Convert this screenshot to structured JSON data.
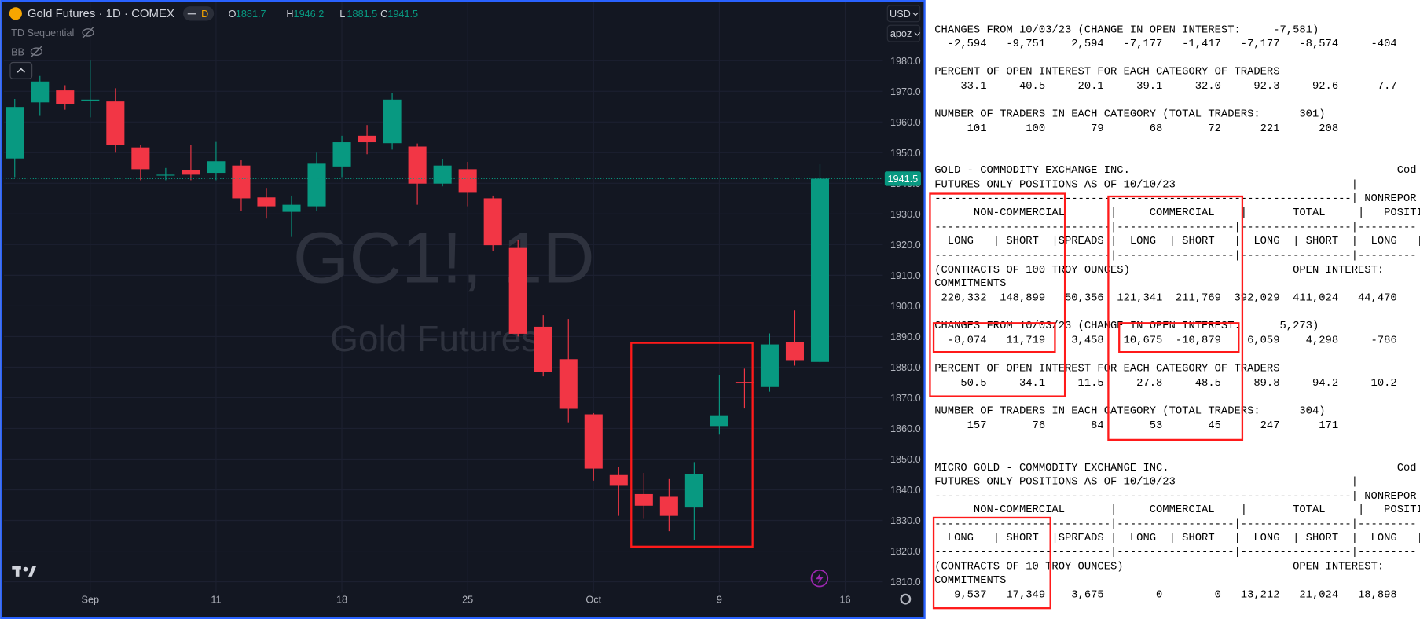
{
  "app": {
    "symbol_title": "Gold Futures · 1D · COMEX",
    "interval_badge": "D",
    "ohlc_letters": [
      "O",
      "H",
      "L",
      "C"
    ],
    "indicators": [
      "TD Sequential",
      "BB"
    ],
    "watermark": {
      "symbol": "GC1!, 1D",
      "description": "Gold Futures"
    },
    "currency": "USD",
    "scale_menu": "apoz"
  },
  "chart_data": {
    "type": "candlestick",
    "series": {
      "open": [
        1948.1,
        1966.4,
        1970.3,
        1967.0,
        1966.7,
        1951.7,
        1942.5,
        1944.3,
        1943.4,
        1945.8,
        1935.4,
        1930.7,
        1932.5,
        1945.5,
        1955.5,
        1953.1,
        1952.0,
        1939.9,
        1944.6,
        1935.1,
        1918.9,
        1893.2,
        1882.6,
        1864.6,
        1844.8,
        1838.6,
        1837.7,
        1834.2,
        1860.8,
        1875.2,
        1873.5,
        1888.2,
        1881.7
      ],
      "high": [
        1967.5,
        1975.0,
        1972.0,
        1980.0,
        1971.0,
        1952.5,
        1945.0,
        1952.5,
        1953.5,
        1947.5,
        1938.5,
        1936.0,
        1950.0,
        1955.5,
        1959.0,
        1969.5,
        1953.0,
        1948.0,
        1947.0,
        1936.0,
        1921.5,
        1897.0,
        1895.7,
        1865.0,
        1847.5,
        1845.5,
        1843.5,
        1849.0,
        1877.5,
        1879.5,
        1891.0,
        1898.5,
        1946.2
      ],
      "low": [
        1942.0,
        1962.0,
        1964.0,
        1961.5,
        1950.0,
        1941.0,
        1941.0,
        1941.0,
        1941.0,
        1931.0,
        1928.5,
        1922.5,
        1931.0,
        1942.0,
        1949.5,
        1951.0,
        1933.0,
        1939.0,
        1932.5,
        1918.0,
        1890.0,
        1877.0,
        1862.0,
        1843.0,
        1831.5,
        1830.5,
        1826.5,
        1823.5,
        1858.0,
        1866.5,
        1872.0,
        1880.5,
        1881.5
      ],
      "close": [
        1964.9,
        1973.2,
        1965.8,
        1967.3,
        1952.5,
        1944.6,
        1942.8,
        1942.8,
        1947.2,
        1935.1,
        1932.5,
        1933.0,
        1946.4,
        1953.4,
        1953.4,
        1967.3,
        1939.9,
        1945.8,
        1936.9,
        1919.8,
        1890.9,
        1878.5,
        1866.4,
        1846.9,
        1841.3,
        1834.8,
        1831.5,
        1845.1,
        1864.3,
        1874.8,
        1887.4,
        1882.3,
        1941.5
      ]
    },
    "colors": {
      "up": "#089981",
      "down": "#f23645"
    },
    "ylim": [
      1806.4,
      1999.8
    ],
    "yticks": [
      {
        "value": 1810,
        "label": "1810.0"
      },
      {
        "value": 1820,
        "label": "1820.0"
      },
      {
        "value": 1830,
        "label": "1830.0"
      },
      {
        "value": 1840,
        "label": "1840.0"
      },
      {
        "value": 1850,
        "label": "1850.0"
      },
      {
        "value": 1860,
        "label": "1860.0"
      },
      {
        "value": 1870,
        "label": "1870.0"
      },
      {
        "value": 1880,
        "label": "1880.0"
      },
      {
        "value": 1890,
        "label": "1890.0"
      },
      {
        "value": 1900,
        "label": "1900.0"
      },
      {
        "value": 1910,
        "label": "1910.0"
      },
      {
        "value": 1920,
        "label": "1920.0"
      },
      {
        "value": 1930,
        "label": "1930.0"
      },
      {
        "value": 1940,
        "label": "1940.0"
      },
      {
        "value": 1950,
        "label": "1950.0"
      },
      {
        "value": 1960,
        "label": "1960.0"
      },
      {
        "value": 1970,
        "label": "1970.0"
      },
      {
        "value": 1980,
        "label": "1980.0"
      }
    ],
    "xlim": [
      -0.576,
      34.5
    ],
    "xticks": [
      {
        "value": 3,
        "label": "Sep"
      },
      {
        "value": 8,
        "label": "11"
      },
      {
        "value": 13,
        "label": "18"
      },
      {
        "value": 18,
        "label": "25"
      },
      {
        "value": 23,
        "label": "Oct"
      },
      {
        "value": 28,
        "label": "9"
      },
      {
        "value": 33,
        "label": "16"
      }
    ],
    "grid": true
  },
  "report": {
    "lines": [
      "CHANGES FROM 10/03/23 (CHANGE IN OPEN INTEREST:     -7,581)",
      "  -2,594   -9,751    2,594   -7,177   -1,417   -7,177   -8,574     -404",
      "PERCENT OF OPEN INTEREST FOR EACH CATEGORY OF TRADERS",
      "    33.1     40.5     20.1     39.1     32.0     92.3     92.6      7.7",
      "NUMBER OF TRADERS IN EACH CATEGORY (TOTAL TRADERS:      301)",
      "     101      100       79       68       72      221      208",
      "GOLD - COMMODITY EXCHANGE INC.                                         Cod",
      "FUTURES ONLY POSITIONS AS OF 10/10/23                           |",
      "----------------------------------------------------------------| NONREPOR",
      "      NON-COMMERCIAL       |     COMMERCIAL    |       TOTAL     |   POSITI",
      "---------------------------|------------------|-----------------|---------",
      "  LONG   | SHORT  |SPREADS |  LONG  | SHORT   |  LONG  | SHORT  |  LONG   |",
      "---------------------------|------------------|-----------------|---------",
      "(CONTRACTS OF 100 TROY OUNCES)                         OPEN INTEREST:",
      "COMMITMENTS",
      " 220,332  148,899   50,356  121,341  211,769  392,029  411,024   44,470",
      "CHANGES FROM 10/03/23 (CHANGE IN OPEN INTEREST:      5,273)",
      "  -8,074   11,719    3,458   10,675  -10,879    6,059    4,298     -786",
      "PERCENT OF OPEN INTEREST FOR EACH CATEGORY OF TRADERS",
      "    50.5     34.1     11.5     27.8     48.5     89.8     94.2     10.2",
      "NUMBER OF TRADERS IN EACH CATEGORY (TOTAL TRADERS:      304)",
      "     157       76       84       53       45      247      171",
      "MICRO GOLD - COMMODITY EXCHANGE INC.                                   Cod",
      "FUTURES ONLY POSITIONS AS OF 10/10/23                           |",
      "----------------------------------------------------------------| NONREPOR",
      "      NON-COMMERCIAL       |     COMMERCIAL    |       TOTAL     |   POSITI",
      "---------------------------|------------------|-----------------|---------",
      "  LONG   | SHORT  |SPREADS |  LONG  | SHORT   |  LONG  | SHORT  |  LONG   |",
      "---------------------------|------------------|-----------------|---------",
      "(CONTRACTS OF 10 TROY OUNCES)                          OPEN INTEREST:",
      "COMMITMENTS",
      "   9,537   17,349    3,675        0        0   13,212   21,024   18,898"
    ]
  }
}
